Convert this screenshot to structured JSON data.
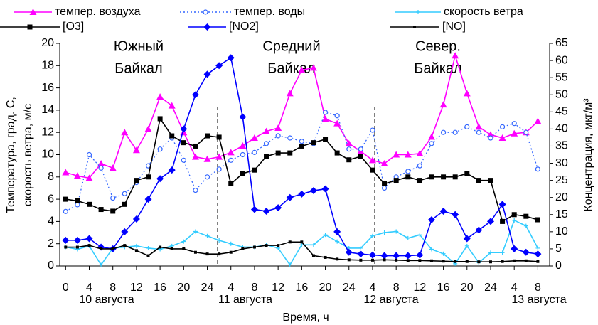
{
  "chart_data": {
    "type": "line",
    "xlabel": "Время, ч",
    "ylabel": [
      "Температура, град. С,",
      "скорость ветра, м/с"
    ],
    "y2label": "Концентрация, мкг/м³",
    "annotations": [
      [
        "Южный",
        "Байкал"
      ],
      [
        "Средний",
        "Байкал"
      ],
      [
        "Север.",
        "Байкал"
      ]
    ],
    "day_labels": [
      "10 августа",
      "11 августа",
      "12 августа",
      "13 августа"
    ],
    "x": [
      0,
      2,
      4,
      6,
      8,
      10,
      12,
      14,
      16,
      18,
      20,
      22,
      24,
      26,
      28,
      30,
      32,
      34,
      36,
      38,
      40,
      42,
      44,
      46,
      48,
      50,
      52,
      54,
      56,
      58,
      60,
      62,
      64,
      66,
      68,
      70,
      72,
      74,
      76,
      78,
      80
    ],
    "xlim": [
      -1,
      82
    ],
    "xticks": [
      0,
      4,
      8,
      12,
      16,
      20,
      24,
      {
        "value": 28,
        "label": "4"
      },
      {
        "value": 32,
        "label": "8"
      },
      {
        "value": 36,
        "label": "12"
      },
      {
        "value": 40,
        "label": "16"
      },
      {
        "value": 44,
        "label": "20"
      },
      {
        "value": 48,
        "label": "24"
      },
      {
        "value": 52,
        "label": "4"
      },
      {
        "value": 56,
        "label": "8"
      },
      {
        "value": 60,
        "label": "12"
      },
      {
        "value": 64,
        "label": "16"
      },
      {
        "value": 68,
        "label": "20"
      },
      {
        "value": 72,
        "label": "24"
      },
      {
        "value": 76,
        "label": "4"
      },
      {
        "value": 80,
        "label": "8"
      }
    ],
    "ylim": [
      0,
      20
    ],
    "yticks": [
      0,
      2,
      4,
      6,
      8,
      10,
      12,
      14,
      16,
      18,
      20
    ],
    "y2lim": [
      0,
      65
    ],
    "y2ticks": [
      0,
      5,
      10,
      15,
      20,
      25,
      30,
      35,
      40,
      45,
      50,
      55,
      60,
      65
    ],
    "series": [
      {
        "name": "темпер. воздуха",
        "color": "#ff00ff",
        "marker": "triangle",
        "axis": "y",
        "values": [
          8.4,
          8.1,
          7.9,
          9.2,
          8.8,
          12.0,
          10.4,
          12.3,
          15.2,
          14.4,
          12.0,
          9.8,
          9.6,
          9.8,
          10.2,
          10.8,
          11.5,
          12.1,
          12.4,
          15.5,
          17.6,
          17.8,
          13.2,
          12.8,
          11.0,
          10.3,
          9.5,
          9.2,
          10.0,
          10.0,
          10.1,
          11.6,
          14.5,
          18.9,
          15.5,
          12.5,
          11.8,
          11.5,
          11.9,
          12.0,
          13.0
        ]
      },
      {
        "name": "темпер. воды",
        "color": "#3366ff",
        "marker": "circle",
        "dash": "dotted",
        "axis": "y",
        "values": [
          4.9,
          5.5,
          10.0,
          8.8,
          6.1,
          6.5,
          7.5,
          9.0,
          10.5,
          11.5,
          9.5,
          6.8,
          8.0,
          8.7,
          9.5,
          10.0,
          10.2,
          11.0,
          11.7,
          11.5,
          11.2,
          11.0,
          13.8,
          13.5,
          10.5,
          10.5,
          12.2,
          7.0,
          8.0,
          8.5,
          9.0,
          11.0,
          12.0,
          12.0,
          12.5,
          12.0,
          11.5,
          12.5,
          12.8,
          12.0,
          8.7
        ]
      },
      {
        "name": "скорость ветра",
        "color": "#33ccff",
        "marker": "plus",
        "axis": "y",
        "values": [
          1.7,
          1.5,
          1.8,
          0.1,
          1.6,
          1.7,
          1.8,
          1.6,
          1.5,
          1.8,
          2.2,
          3.1,
          2.7,
          2.3,
          2.0,
          1.7,
          1.7,
          1.9,
          1.6,
          0.1,
          1.9,
          1.9,
          2.8,
          2.2,
          1.6,
          1.6,
          2.7,
          3.0,
          3.1,
          2.5,
          2.8,
          1.5,
          1.1,
          0.2,
          1.8,
          0.3,
          1.2,
          1.2,
          4.1,
          3.6,
          1.6
        ]
      },
      {
        "name": "[O3]",
        "color": "#000000",
        "marker": "square",
        "axis": "y2",
        "values": [
          19.5,
          19,
          18,
          16.5,
          16,
          18,
          25,
          26,
          43,
          38,
          36,
          35,
          38,
          37.6,
          24,
          27,
          28,
          32,
          33,
          33,
          35,
          36,
          37,
          33,
          31,
          32,
          28,
          24,
          25,
          26,
          25,
          26,
          26,
          26,
          27,
          25,
          25,
          13,
          15,
          14.5,
          13.5
        ]
      },
      {
        "name": "[NO2]",
        "color": "#0000ff",
        "marker": "diamond",
        "axis": "y2",
        "values": [
          7.5,
          7.5,
          8,
          5.5,
          5,
          10,
          13.7,
          19.5,
          25.5,
          28,
          40,
          50,
          56,
          58.5,
          60.8,
          43.5,
          16.5,
          16,
          17,
          20,
          21,
          22,
          22.5,
          10,
          4,
          3.5,
          3.2,
          3,
          3,
          3,
          3.2,
          13.5,
          16,
          15,
          8,
          10.5,
          13,
          18,
          5,
          4,
          3.5
        ]
      },
      {
        "name": "[NO]",
        "color": "#000000",
        "marker": "smallsquare",
        "axis": "y2",
        "values": [
          5.5,
          5.5,
          6,
          5,
          5,
          6,
          4.5,
          3,
          5.5,
          5,
          5,
          4,
          3.5,
          3.5,
          4,
          5,
          5.5,
          6,
          6,
          7,
          7,
          3,
          2.5,
          2,
          1.8,
          1.7,
          1.7,
          1.8,
          1.7,
          1.6,
          1.6,
          1.5,
          1.4,
          1.3,
          1.3,
          1.2,
          1.2,
          1.3,
          1.5,
          1.5,
          1.3
        ]
      }
    ]
  }
}
